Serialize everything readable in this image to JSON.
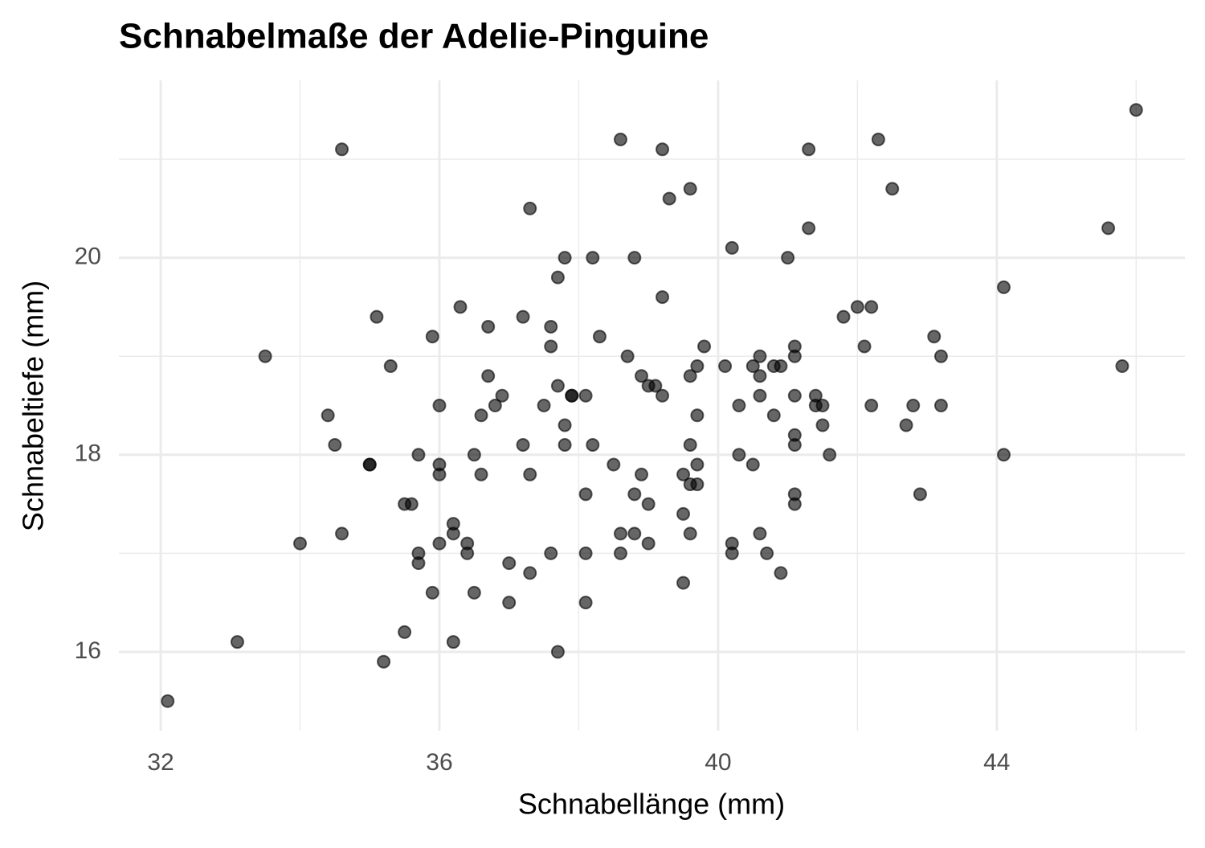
{
  "chart_data": {
    "type": "scatter",
    "title": "Schnabelmaße der Adelie-Pinguine",
    "x_label": "Schnabellänge (mm)",
    "y_label": "Schnabeltiefe (mm)",
    "color": "#000000",
    "grid": true,
    "xlim": [
      31.4,
      46.7
    ],
    "ylim": [
      15.2,
      21.8
    ],
    "xticks": [
      32,
      36,
      40,
      44
    ],
    "yticks": [
      16,
      18,
      20
    ],
    "x_minor_ticks": [
      34,
      38,
      42,
      46
    ],
    "y_minor_ticks": [
      17,
      19,
      21
    ],
    "x": [
      32.1,
      33.1,
      33.5,
      34.0,
      34.4,
      34.5,
      34.6,
      34.6,
      35.0,
      35.0,
      35.1,
      35.2,
      35.3,
      35.5,
      35.5,
      35.6,
      35.7,
      35.7,
      35.7,
      35.9,
      35.9,
      36.0,
      36.0,
      36.0,
      36.0,
      36.2,
      36.2,
      36.2,
      36.3,
      36.4,
      36.4,
      36.5,
      36.5,
      36.6,
      36.6,
      36.7,
      36.7,
      36.8,
      36.9,
      37.0,
      37.0,
      37.2,
      37.2,
      37.3,
      37.3,
      37.3,
      37.5,
      37.6,
      37.6,
      37.6,
      37.7,
      37.7,
      37.7,
      37.8,
      37.8,
      37.8,
      37.9,
      37.9,
      38.1,
      38.1,
      38.1,
      38.1,
      38.2,
      38.2,
      38.3,
      38.5,
      38.6,
      38.6,
      38.6,
      38.7,
      38.8,
      38.8,
      38.8,
      38.9,
      38.9,
      39.0,
      39.0,
      39.0,
      39.1,
      39.2,
      39.2,
      39.2,
      39.3,
      39.5,
      39.5,
      39.5,
      39.6,
      39.6,
      39.6,
      39.6,
      39.6,
      39.7,
      39.7,
      39.7,
      39.7,
      39.8,
      40.1,
      40.2,
      40.2,
      40.2,
      40.3,
      40.3,
      40.5,
      40.5,
      40.6,
      40.6,
      40.6,
      40.6,
      40.7,
      40.8,
      40.8,
      40.9,
      40.9,
      41.0,
      41.1,
      41.1,
      41.1,
      41.1,
      41.1,
      41.1,
      41.1,
      41.3,
      41.3,
      41.4,
      41.4,
      41.5,
      41.5,
      41.6,
      41.8,
      42.0,
      42.1,
      42.2,
      42.2,
      42.3,
      42.5,
      42.7,
      42.8,
      42.9,
      43.1,
      43.2,
      43.2,
      44.1,
      44.1,
      45.6,
      45.8,
      46.0
    ],
    "values": [
      15.5,
      16.1,
      19.0,
      17.1,
      18.4,
      18.1,
      21.1,
      17.2,
      17.9,
      17.9,
      19.4,
      15.9,
      18.9,
      16.2,
      17.5,
      17.5,
      17.0,
      16.9,
      18.0,
      19.2,
      16.6,
      18.5,
      17.9,
      17.8,
      17.1,
      17.3,
      17.2,
      16.1,
      19.5,
      17.1,
      17.0,
      18.0,
      16.6,
      18.4,
      17.8,
      19.3,
      18.8,
      18.5,
      18.6,
      16.9,
      16.5,
      19.4,
      18.1,
      20.5,
      17.8,
      16.8,
      18.5,
      19.3,
      19.1,
      17.0,
      19.8,
      18.7,
      16.0,
      20.0,
      18.3,
      18.1,
      18.6,
      18.6,
      18.6,
      17.6,
      17.0,
      16.5,
      20.0,
      18.1,
      19.2,
      17.9,
      21.2,
      17.2,
      17.0,
      19.0,
      20.0,
      17.6,
      17.2,
      18.8,
      17.8,
      18.7,
      17.5,
      17.1,
      18.7,
      21.1,
      19.6,
      18.6,
      20.6,
      17.8,
      17.4,
      16.7,
      20.7,
      18.8,
      18.1,
      17.7,
      17.2,
      18.9,
      18.4,
      17.9,
      17.7,
      19.1,
      18.9,
      20.1,
      17.1,
      17.0,
      18.5,
      18.0,
      18.9,
      17.9,
      19.0,
      18.8,
      18.6,
      17.2,
      17.0,
      18.9,
      18.4,
      18.9,
      16.8,
      20.0,
      19.1,
      19.0,
      18.6,
      18.2,
      18.1,
      17.6,
      17.5,
      21.1,
      20.3,
      18.6,
      18.5,
      18.5,
      18.3,
      18.0,
      19.4,
      19.5,
      19.1,
      19.5,
      18.5,
      21.2,
      20.7,
      18.3,
      18.5,
      17.6,
      19.2,
      19.0,
      18.5,
      19.7,
      18.0,
      20.3,
      18.9,
      21.5
    ]
  }
}
